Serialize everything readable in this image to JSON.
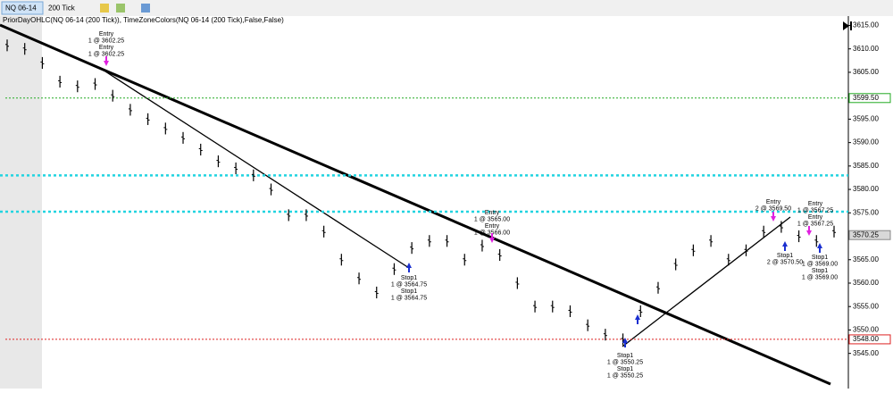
{
  "toolbar": {
    "instrument": "NQ 06-14",
    "interval": "200 Tick"
  },
  "indicator_label": "PriorDayOHLC(NQ 06-14 (200 Tick)), TimeZoneColors(NQ 06-14 (200 Tick),False,False)",
  "chart_data": {
    "type": "range-bar",
    "color": "#000000",
    "ylim": [
      3537.5,
      3617
    ],
    "yticks": [
      {
        "value": 3615,
        "label": "3615.00"
      },
      {
        "value": 3610,
        "label": "3610.00"
      },
      {
        "value": 3605,
        "label": "3605.00"
      },
      {
        "value": 3595,
        "label": "3595.00"
      },
      {
        "value": 3590,
        "label": "3590.00"
      },
      {
        "value": 3585,
        "label": "3585.00"
      },
      {
        "value": 3580,
        "label": "3580.00"
      },
      {
        "value": 3575,
        "label": "3575.00"
      },
      {
        "value": 3565,
        "label": "3565.00"
      },
      {
        "value": 3560,
        "label": "3560.00"
      },
      {
        "value": 3555,
        "label": "3555.00"
      },
      {
        "value": 3550,
        "label": "3550.00"
      },
      {
        "value": 3545,
        "label": "3545.00"
      }
    ],
    "highs": [
      3612,
      3611.25,
      3608.25,
      3604.25,
      3603.25,
      3603.75,
      3601.25,
      3598.25,
      3596.25,
      3594.25,
      3592.25,
      3589.75,
      3587.25,
      3585.75,
      3584.25,
      3581.25,
      3575.75,
      3575.75,
      3572.25,
      3566.25,
      3562.25,
      3559.25,
      3564.25,
      3568.75,
      3570.25,
      3570.25,
      3566.25,
      3569.25,
      3567.25,
      3561.25,
      3556.25,
      3556.25,
      3555.25,
      3552.25,
      3550.25,
      3549.25,
      3555.25,
      3560.25,
      3565.25,
      3568.25,
      3570.25,
      3566.25,
      3568.25,
      3572.25,
      3573.25,
      3571.25,
      3570.25,
      3572.25
    ],
    "lows": [
      3609.5,
      3608.75,
      3605.75,
      3601.75,
      3600.75,
      3601.25,
      3598.75,
      3595.75,
      3593.75,
      3591.75,
      3589.75,
      3587.25,
      3584.75,
      3583.25,
      3581.75,
      3578.75,
      3573.25,
      3573.25,
      3569.75,
      3563.75,
      3559.75,
      3556.75,
      3561.75,
      3566.25,
      3567.75,
      3567.75,
      3563.75,
      3566.75,
      3564.75,
      3558.75,
      3553.75,
      3553.75,
      3552.75,
      3549.75,
      3547.75,
      3546.75,
      3552.75,
      3557.75,
      3562.75,
      3565.75,
      3567.75,
      3563.75,
      3565.75,
      3569.75,
      3570.75,
      3568.75,
      3567.75,
      3569.75
    ],
    "price_lines": [
      {
        "value": 3599.5,
        "label": "3599.50",
        "color": "#22aa22"
      },
      {
        "value": 3548,
        "label": "3548.00",
        "color": "#dd2222"
      }
    ],
    "cyan_lines": [
      3583,
      3575.25
    ],
    "last_price": {
      "value": 3570.25,
      "label": "3570.25"
    },
    "annotations": [
      [
        "Entry",
        "1 @ 3602.25",
        "Entry",
        "1 @ 3602.25"
      ],
      [
        "Stop1",
        "1 @ 3564.75",
        "Stop1",
        "1 @ 3564.75"
      ],
      [
        "Entry",
        "1 @ 3565.00",
        "Entry",
        "1 @ 3566.00"
      ],
      [
        "Stop1",
        "1 @ 3550.25",
        "Stop1",
        "1 @ 3550.25"
      ],
      [
        "Entry",
        "2 @ 3569.50"
      ],
      [
        "Stop1",
        "2 @ 3570.50"
      ],
      [
        "Entry",
        "1 @ 3567.25",
        "Entry",
        "1 @ 3567.25"
      ],
      [
        "Stop1",
        "1 @ 3569.00",
        "Stop1",
        "1 @ 3569.00"
      ]
    ]
  }
}
